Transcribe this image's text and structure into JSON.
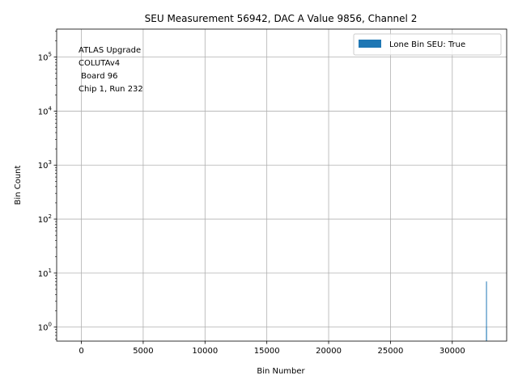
{
  "chart_data": {
    "type": "bar",
    "title": "SEU Measurement 56942, DAC A Value 9856, Channel 2",
    "xlabel": "Bin Number",
    "ylabel": "Bin Count",
    "yscale": "log",
    "xlim": [
      -2000,
      34400
    ],
    "ylim": [
      0.55,
      330000
    ],
    "grid": true,
    "legend_position": "upper right",
    "x_ticks": [
      0,
      5000,
      10000,
      15000,
      20000,
      25000,
      30000
    ],
    "y_ticks": [
      1,
      10,
      100,
      1000,
      10000,
      100000
    ],
    "y_tick_labels": [
      {
        "base": "10",
        "exp": "0"
      },
      {
        "base": "10",
        "exp": "1"
      },
      {
        "base": "10",
        "exp": "2"
      },
      {
        "base": "10",
        "exp": "3"
      },
      {
        "base": "10",
        "exp": "4"
      },
      {
        "base": "10",
        "exp": "5"
      }
    ],
    "series": [
      {
        "name": "Lone Bin SEU: True",
        "color": "#1f77b4",
        "bins": [
          {
            "x": 32767,
            "value": 7
          },
          {
            "x": 32768,
            "value": 1
          }
        ]
      }
    ],
    "annotation": [
      "ATLAS Upgrade",
      "COLUTAv4",
      " Board 96",
      "Chip 1, Run 232"
    ]
  }
}
